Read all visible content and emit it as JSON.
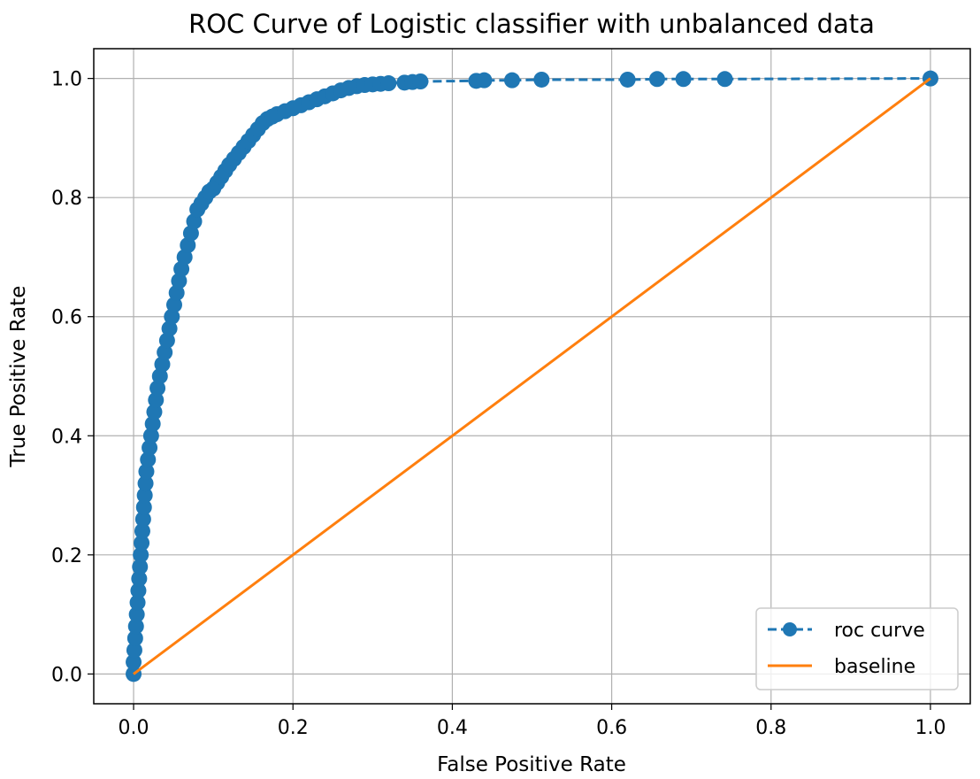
{
  "chart_data": {
    "type": "line",
    "title": "ROC Curve of Logistic classifier with unbalanced data",
    "xlabel": "False Positive Rate",
    "ylabel": "True Positive Rate",
    "xlim": [
      -0.05,
      1.05
    ],
    "ylim": [
      -0.05,
      1.05
    ],
    "xticks": [
      0.0,
      0.2,
      0.4,
      0.6,
      0.8,
      1.0
    ],
    "xtick_labels": [
      "0.0",
      "0.2",
      "0.4",
      "0.6",
      "0.8",
      "1.0"
    ],
    "yticks": [
      0.0,
      0.2,
      0.4,
      0.6,
      0.8,
      1.0
    ],
    "ytick_labels": [
      "0.0",
      "0.2",
      "0.4",
      "0.6",
      "0.8",
      "1.0"
    ],
    "grid": true,
    "legend_position": "lower-right",
    "series": [
      {
        "name": "roc curve",
        "color": "#1f77b4",
        "line_style": "dashed",
        "marker": "circle",
        "x": [
          0.0,
          0.0,
          0.001,
          0.002,
          0.003,
          0.004,
          0.005,
          0.006,
          0.007,
          0.008,
          0.009,
          0.01,
          0.011,
          0.012,
          0.013,
          0.014,
          0.015,
          0.016,
          0.018,
          0.02,
          0.022,
          0.024,
          0.026,
          0.028,
          0.03,
          0.033,
          0.036,
          0.039,
          0.042,
          0.045,
          0.048,
          0.051,
          0.054,
          0.057,
          0.06,
          0.064,
          0.068,
          0.072,
          0.076,
          0.08,
          0.085,
          0.09,
          0.095,
          0.1,
          0.105,
          0.11,
          0.115,
          0.12,
          0.126,
          0.132,
          0.138,
          0.144,
          0.15,
          0.156,
          0.162,
          0.168,
          0.174,
          0.18,
          0.19,
          0.2,
          0.21,
          0.22,
          0.23,
          0.24,
          0.25,
          0.26,
          0.27,
          0.28,
          0.29,
          0.3,
          0.31,
          0.32,
          0.34,
          0.35,
          0.36,
          0.43,
          0.44,
          0.475,
          0.512,
          0.62,
          0.657,
          0.69,
          0.742,
          1.0
        ],
        "y": [
          0.0,
          0.02,
          0.04,
          0.06,
          0.08,
          0.1,
          0.12,
          0.14,
          0.16,
          0.18,
          0.2,
          0.22,
          0.24,
          0.26,
          0.28,
          0.3,
          0.32,
          0.34,
          0.36,
          0.38,
          0.4,
          0.42,
          0.44,
          0.46,
          0.48,
          0.5,
          0.52,
          0.54,
          0.56,
          0.58,
          0.6,
          0.62,
          0.64,
          0.66,
          0.68,
          0.7,
          0.72,
          0.74,
          0.76,
          0.78,
          0.79,
          0.8,
          0.81,
          0.815,
          0.825,
          0.835,
          0.845,
          0.855,
          0.865,
          0.875,
          0.885,
          0.895,
          0.905,
          0.915,
          0.925,
          0.932,
          0.936,
          0.94,
          0.945,
          0.95,
          0.955,
          0.96,
          0.965,
          0.97,
          0.975,
          0.98,
          0.984,
          0.987,
          0.989,
          0.99,
          0.991,
          0.992,
          0.993,
          0.994,
          0.995,
          0.996,
          0.997,
          0.997,
          0.998,
          0.998,
          0.999,
          0.999,
          0.999,
          1.0
        ]
      },
      {
        "name": "baseline",
        "color": "#ff7f0e",
        "line_style": "solid",
        "marker": "none",
        "x": [
          0.0,
          1.0
        ],
        "y": [
          0.0,
          1.0
        ]
      }
    ]
  }
}
